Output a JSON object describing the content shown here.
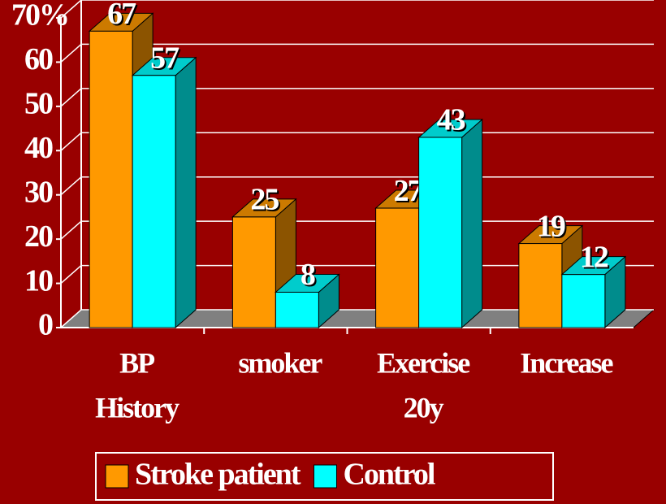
{
  "chart_data": {
    "type": "bar3d",
    "categories": [
      [
        "BP",
        "History"
      ],
      [
        "smoker"
      ],
      [
        "Exercise",
        "20y"
      ],
      [
        "Increase"
      ]
    ],
    "series": [
      {
        "name": "Stroke patient",
        "color": "#FF9900",
        "values": [
          67,
          25,
          27,
          19
        ]
      },
      {
        "name": "Control",
        "color": "#00FFFF",
        "values": [
          57,
          8,
          43,
          12
        ]
      }
    ],
    "ylim": [
      0,
      70
    ],
    "yticks": [
      0,
      10,
      20,
      30,
      40,
      50,
      60,
      {
        "value": 70,
        "label": "70%"
      }
    ],
    "grid": true
  }
}
